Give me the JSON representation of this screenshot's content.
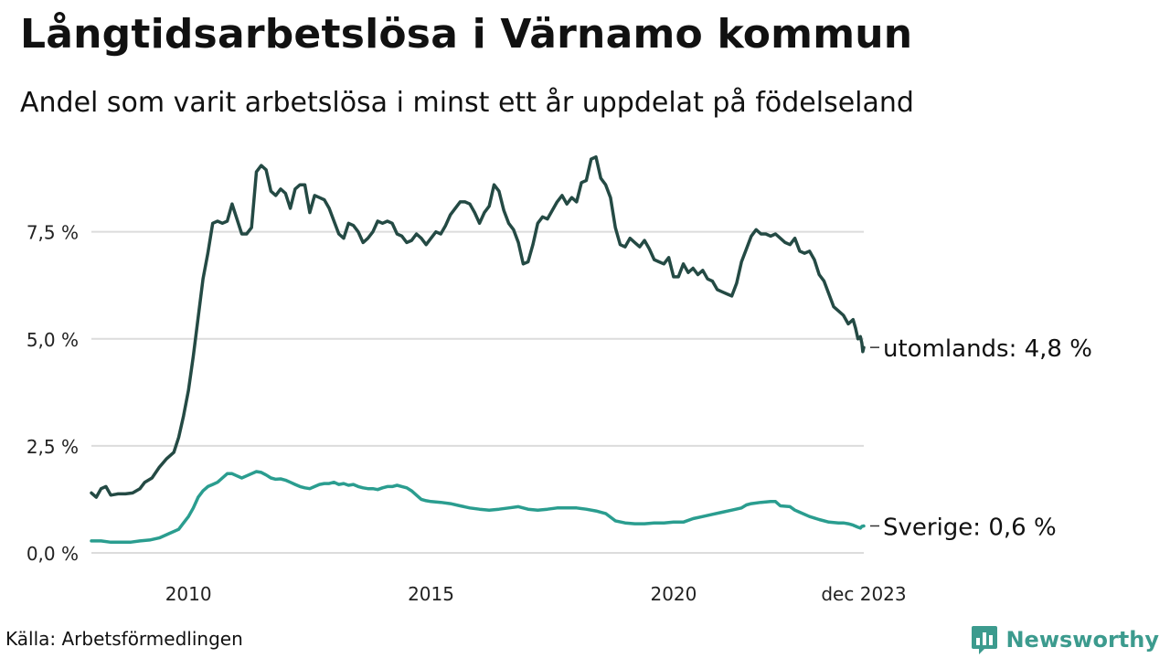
{
  "title": "Långtidsarbetslösa i Värnamo kommun",
  "subtitle": "Andel som varit arbetslösa i minst ett år uppdelat på födelseland",
  "source": "Källa: Arbetsförmedlingen",
  "brand": {
    "name": "Newsworthy",
    "icon": "bar-chart-icon",
    "color": "#3c9b8e"
  },
  "chart_data": {
    "type": "line",
    "title": "Långtidsarbetslösa i Värnamo kommun",
    "xlabel": "",
    "ylabel": "",
    "xlim": [
      2008.0,
      2023.92
    ],
    "ylim": [
      0,
      9.5
    ],
    "grid": true,
    "yticks": [
      {
        "value": 0,
        "label": "0,0 %"
      },
      {
        "value": 2.5,
        "label": "2,5 %"
      },
      {
        "value": 5,
        "label": "5,0 %"
      },
      {
        "value": 7.5,
        "label": "7,5 %"
      }
    ],
    "xticks": [
      {
        "value": 2010,
        "label": "2010"
      },
      {
        "value": 2015,
        "label": "2015"
      },
      {
        "value": 2020,
        "label": "2020"
      },
      {
        "value": 2023.92,
        "label": "dec 2023"
      }
    ],
    "series": [
      {
        "name": "utomlands",
        "label": "utomlands: 4,8 %",
        "color": "#244a44",
        "points": [
          [
            2008.0,
            1.4
          ],
          [
            2008.1,
            1.3
          ],
          [
            2008.2,
            1.5
          ],
          [
            2008.3,
            1.55
          ],
          [
            2008.4,
            1.35
          ],
          [
            2008.55,
            1.38
          ],
          [
            2008.7,
            1.38
          ],
          [
            2008.85,
            1.4
          ],
          [
            2009.0,
            1.5
          ],
          [
            2009.1,
            1.65
          ],
          [
            2009.25,
            1.75
          ],
          [
            2009.4,
            2.0
          ],
          [
            2009.55,
            2.2
          ],
          [
            2009.7,
            2.35
          ],
          [
            2009.8,
            2.7
          ],
          [
            2009.9,
            3.2
          ],
          [
            2010.0,
            3.8
          ],
          [
            2010.1,
            4.6
          ],
          [
            2010.2,
            5.5
          ],
          [
            2010.3,
            6.4
          ],
          [
            2010.4,
            7.0
          ],
          [
            2010.5,
            7.7
          ],
          [
            2010.6,
            7.75
          ],
          [
            2010.7,
            7.7
          ],
          [
            2010.8,
            7.75
          ],
          [
            2010.9,
            8.15
          ],
          [
            2011.0,
            7.8
          ],
          [
            2011.1,
            7.45
          ],
          [
            2011.2,
            7.45
          ],
          [
            2011.3,
            7.6
          ],
          [
            2011.4,
            8.9
          ],
          [
            2011.5,
            9.05
          ],
          [
            2011.6,
            8.95
          ],
          [
            2011.7,
            8.45
          ],
          [
            2011.8,
            8.35
          ],
          [
            2011.9,
            8.5
          ],
          [
            2012.0,
            8.4
          ],
          [
            2012.1,
            8.05
          ],
          [
            2012.2,
            8.5
          ],
          [
            2012.3,
            8.6
          ],
          [
            2012.4,
            8.6
          ],
          [
            2012.5,
            7.95
          ],
          [
            2012.6,
            8.35
          ],
          [
            2012.7,
            8.3
          ],
          [
            2012.8,
            8.25
          ],
          [
            2012.9,
            8.05
          ],
          [
            2013.0,
            7.75
          ],
          [
            2013.1,
            7.45
          ],
          [
            2013.2,
            7.35
          ],
          [
            2013.3,
            7.7
          ],
          [
            2013.4,
            7.65
          ],
          [
            2013.5,
            7.5
          ],
          [
            2013.6,
            7.25
          ],
          [
            2013.7,
            7.35
          ],
          [
            2013.8,
            7.5
          ],
          [
            2013.9,
            7.75
          ],
          [
            2014.0,
            7.7
          ],
          [
            2014.1,
            7.75
          ],
          [
            2014.2,
            7.7
          ],
          [
            2014.3,
            7.45
          ],
          [
            2014.4,
            7.4
          ],
          [
            2014.5,
            7.25
          ],
          [
            2014.6,
            7.3
          ],
          [
            2014.7,
            7.45
          ],
          [
            2014.8,
            7.35
          ],
          [
            2014.9,
            7.2
          ],
          [
            2015.0,
            7.35
          ],
          [
            2015.1,
            7.5
          ],
          [
            2015.2,
            7.45
          ],
          [
            2015.3,
            7.65
          ],
          [
            2015.4,
            7.9
          ],
          [
            2015.5,
            8.05
          ],
          [
            2015.6,
            8.2
          ],
          [
            2015.7,
            8.2
          ],
          [
            2015.8,
            8.15
          ],
          [
            2015.9,
            7.95
          ],
          [
            2016.0,
            7.7
          ],
          [
            2016.1,
            7.95
          ],
          [
            2016.2,
            8.1
          ],
          [
            2016.3,
            8.6
          ],
          [
            2016.4,
            8.45
          ],
          [
            2016.5,
            8.0
          ],
          [
            2016.6,
            7.7
          ],
          [
            2016.7,
            7.55
          ],
          [
            2016.8,
            7.25
          ],
          [
            2016.9,
            6.75
          ],
          [
            2017.0,
            6.8
          ],
          [
            2017.1,
            7.2
          ],
          [
            2017.2,
            7.7
          ],
          [
            2017.3,
            7.85
          ],
          [
            2017.4,
            7.8
          ],
          [
            2017.5,
            8.0
          ],
          [
            2017.6,
            8.2
          ],
          [
            2017.7,
            8.35
          ],
          [
            2017.8,
            8.15
          ],
          [
            2017.9,
            8.3
          ],
          [
            2018.0,
            8.2
          ],
          [
            2018.1,
            8.65
          ],
          [
            2018.2,
            8.7
          ],
          [
            2018.3,
            9.2
          ],
          [
            2018.4,
            9.25
          ],
          [
            2018.5,
            8.75
          ],
          [
            2018.6,
            8.6
          ],
          [
            2018.7,
            8.3
          ],
          [
            2018.8,
            7.6
          ],
          [
            2018.9,
            7.2
          ],
          [
            2019.0,
            7.15
          ],
          [
            2019.1,
            7.35
          ],
          [
            2019.2,
            7.25
          ],
          [
            2019.3,
            7.15
          ],
          [
            2019.4,
            7.3
          ],
          [
            2019.5,
            7.1
          ],
          [
            2019.6,
            6.85
          ],
          [
            2019.7,
            6.8
          ],
          [
            2019.8,
            6.75
          ],
          [
            2019.9,
            6.9
          ],
          [
            2020.0,
            6.45
          ],
          [
            2020.1,
            6.45
          ],
          [
            2020.2,
            6.75
          ],
          [
            2020.3,
            6.55
          ],
          [
            2020.4,
            6.65
          ],
          [
            2020.5,
            6.5
          ],
          [
            2020.6,
            6.6
          ],
          [
            2020.7,
            6.4
          ],
          [
            2020.8,
            6.35
          ],
          [
            2020.9,
            6.15
          ],
          [
            2021.0,
            6.1
          ],
          [
            2021.1,
            6.05
          ],
          [
            2021.2,
            6.0
          ],
          [
            2021.3,
            6.3
          ],
          [
            2021.4,
            6.8
          ],
          [
            2021.5,
            7.1
          ],
          [
            2021.6,
            7.4
          ],
          [
            2021.7,
            7.55
          ],
          [
            2021.8,
            7.45
          ],
          [
            2021.9,
            7.45
          ],
          [
            2022.0,
            7.4
          ],
          [
            2022.1,
            7.45
          ],
          [
            2022.2,
            7.35
          ],
          [
            2022.3,
            7.25
          ],
          [
            2022.4,
            7.2
          ],
          [
            2022.5,
            7.35
          ],
          [
            2022.6,
            7.05
          ],
          [
            2022.7,
            7.0
          ],
          [
            2022.8,
            7.05
          ],
          [
            2022.9,
            6.85
          ],
          [
            2023.0,
            6.5
          ],
          [
            2023.1,
            6.35
          ],
          [
            2023.2,
            6.05
          ],
          [
            2023.3,
            5.75
          ],
          [
            2023.4,
            5.65
          ],
          [
            2023.5,
            5.55
          ],
          [
            2023.6,
            5.35
          ],
          [
            2023.7,
            5.45
          ],
          [
            2023.75,
            5.25
          ],
          [
            2023.8,
            5.0
          ],
          [
            2023.85,
            5.05
          ],
          [
            2023.88,
            4.9
          ],
          [
            2023.9,
            4.7
          ],
          [
            2023.92,
            4.8
          ]
        ]
      },
      {
        "name": "Sverige",
        "label": "Sverige: 0,6 %",
        "color": "#2a9d8f",
        "points": [
          [
            2008.0,
            0.28
          ],
          [
            2008.2,
            0.28
          ],
          [
            2008.4,
            0.25
          ],
          [
            2008.6,
            0.25
          ],
          [
            2008.8,
            0.25
          ],
          [
            2009.0,
            0.28
          ],
          [
            2009.2,
            0.3
          ],
          [
            2009.4,
            0.35
          ],
          [
            2009.6,
            0.45
          ],
          [
            2009.8,
            0.55
          ],
          [
            2009.9,
            0.7
          ],
          [
            2010.0,
            0.85
          ],
          [
            2010.1,
            1.05
          ],
          [
            2010.2,
            1.3
          ],
          [
            2010.3,
            1.45
          ],
          [
            2010.4,
            1.55
          ],
          [
            2010.5,
            1.6
          ],
          [
            2010.6,
            1.65
          ],
          [
            2010.7,
            1.75
          ],
          [
            2010.8,
            1.85
          ],
          [
            2010.9,
            1.85
          ],
          [
            2011.0,
            1.8
          ],
          [
            2011.1,
            1.75
          ],
          [
            2011.2,
            1.8
          ],
          [
            2011.3,
            1.85
          ],
          [
            2011.4,
            1.9
          ],
          [
            2011.5,
            1.88
          ],
          [
            2011.6,
            1.82
          ],
          [
            2011.7,
            1.75
          ],
          [
            2011.8,
            1.72
          ],
          [
            2011.9,
            1.73
          ],
          [
            2012.0,
            1.7
          ],
          [
            2012.1,
            1.65
          ],
          [
            2012.2,
            1.6
          ],
          [
            2012.3,
            1.55
          ],
          [
            2012.4,
            1.52
          ],
          [
            2012.5,
            1.5
          ],
          [
            2012.6,
            1.55
          ],
          [
            2012.7,
            1.6
          ],
          [
            2012.8,
            1.62
          ],
          [
            2012.9,
            1.62
          ],
          [
            2013.0,
            1.65
          ],
          [
            2013.1,
            1.6
          ],
          [
            2013.2,
            1.62
          ],
          [
            2013.3,
            1.58
          ],
          [
            2013.4,
            1.6
          ],
          [
            2013.5,
            1.55
          ],
          [
            2013.6,
            1.52
          ],
          [
            2013.7,
            1.5
          ],
          [
            2013.8,
            1.5
          ],
          [
            2013.9,
            1.48
          ],
          [
            2014.0,
            1.52
          ],
          [
            2014.1,
            1.55
          ],
          [
            2014.2,
            1.55
          ],
          [
            2014.3,
            1.58
          ],
          [
            2014.4,
            1.55
          ],
          [
            2014.5,
            1.52
          ],
          [
            2014.6,
            1.45
          ],
          [
            2014.7,
            1.35
          ],
          [
            2014.8,
            1.25
          ],
          [
            2014.9,
            1.22
          ],
          [
            2015.0,
            1.2
          ],
          [
            2015.2,
            1.18
          ],
          [
            2015.4,
            1.15
          ],
          [
            2015.6,
            1.1
          ],
          [
            2015.8,
            1.05
          ],
          [
            2016.0,
            1.02
          ],
          [
            2016.2,
            1.0
          ],
          [
            2016.4,
            1.02
          ],
          [
            2016.6,
            1.05
          ],
          [
            2016.8,
            1.08
          ],
          [
            2017.0,
            1.02
          ],
          [
            2017.2,
            1.0
          ],
          [
            2017.4,
            1.02
          ],
          [
            2017.6,
            1.05
          ],
          [
            2017.8,
            1.05
          ],
          [
            2018.0,
            1.05
          ],
          [
            2018.2,
            1.02
          ],
          [
            2018.4,
            0.98
          ],
          [
            2018.6,
            0.92
          ],
          [
            2018.8,
            0.75
          ],
          [
            2019.0,
            0.7
          ],
          [
            2019.2,
            0.68
          ],
          [
            2019.4,
            0.68
          ],
          [
            2019.6,
            0.7
          ],
          [
            2019.8,
            0.7
          ],
          [
            2020.0,
            0.72
          ],
          [
            2020.2,
            0.72
          ],
          [
            2020.4,
            0.8
          ],
          [
            2020.6,
            0.85
          ],
          [
            2020.8,
            0.9
          ],
          [
            2021.0,
            0.95
          ],
          [
            2021.2,
            1.0
          ],
          [
            2021.4,
            1.05
          ],
          [
            2021.5,
            1.12
          ],
          [
            2021.6,
            1.15
          ],
          [
            2021.8,
            1.18
          ],
          [
            2022.0,
            1.2
          ],
          [
            2022.1,
            1.2
          ],
          [
            2022.2,
            1.1
          ],
          [
            2022.4,
            1.08
          ],
          [
            2022.5,
            1.0
          ],
          [
            2022.6,
            0.95
          ],
          [
            2022.8,
            0.85
          ],
          [
            2023.0,
            0.78
          ],
          [
            2023.2,
            0.72
          ],
          [
            2023.4,
            0.7
          ],
          [
            2023.5,
            0.7
          ],
          [
            2023.6,
            0.68
          ],
          [
            2023.7,
            0.65
          ],
          [
            2023.8,
            0.6
          ],
          [
            2023.85,
            0.58
          ],
          [
            2023.88,
            0.62
          ],
          [
            2023.92,
            0.63
          ]
        ]
      }
    ]
  }
}
